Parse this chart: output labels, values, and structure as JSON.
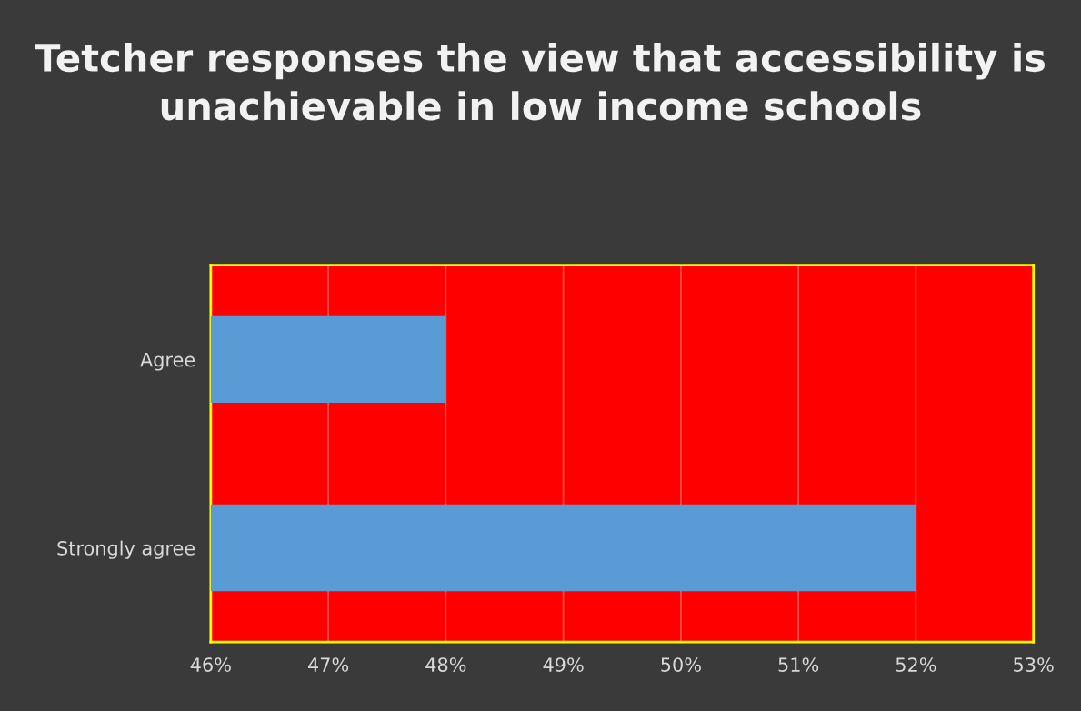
{
  "chart_data": {
    "type": "bar",
    "orientation": "horizontal",
    "title": "Tetcher responses the view that accessibility is unachievable in low income schools",
    "categories": [
      "Agree",
      "Strongly agree"
    ],
    "values": [
      48,
      52
    ],
    "color": "#5b9bd5",
    "xlim": [
      46,
      53
    ],
    "xticks": [
      {
        "value": 46,
        "label": "46%"
      },
      {
        "value": 47,
        "label": "47%"
      },
      {
        "value": 48,
        "label": "48%"
      },
      {
        "value": 49,
        "label": "49%"
      },
      {
        "value": 50,
        "label": "50%"
      },
      {
        "value": 51,
        "label": "51%"
      },
      {
        "value": 52,
        "label": "52%"
      },
      {
        "value": 53,
        "label": "53%"
      }
    ],
    "grid": "x"
  }
}
